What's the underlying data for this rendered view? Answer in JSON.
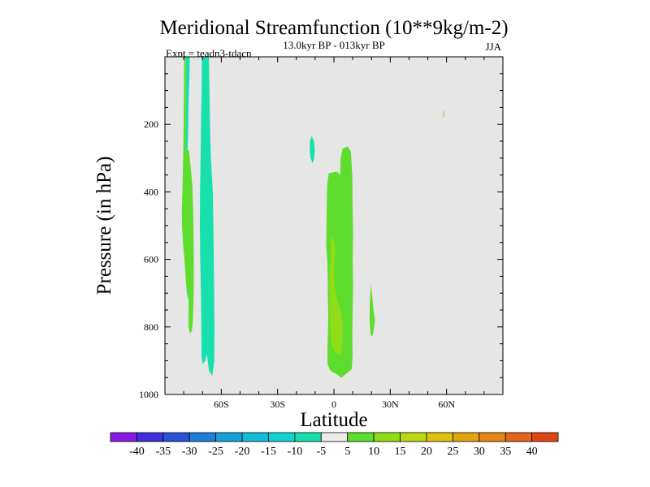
{
  "chart_data": {
    "type": "heatmap",
    "title": "Meridional Streamfunction (10**9kg/m-2)",
    "subtitle": "13.0kyr BP - 013kyr BP",
    "experiment": "Expt = teadn3-tdacn",
    "season": "JJA",
    "xlabel": "Latitude",
    "ylabel": "Pressure (in hPa)",
    "xlim": [
      -90,
      90
    ],
    "ylim": [
      0,
      1000
    ],
    "y_inverted": true,
    "x_ticks": [
      {
        "value": -60,
        "label": "60S"
      },
      {
        "value": -30,
        "label": "30S"
      },
      {
        "value": 0,
        "label": "0"
      },
      {
        "value": 30,
        "label": "30N"
      },
      {
        "value": 60,
        "label": "60N"
      }
    ],
    "y_ticks": [
      {
        "value": 200,
        "label": "200"
      },
      {
        "value": 400,
        "label": "400"
      },
      {
        "value": 600,
        "label": "600"
      },
      {
        "value": 800,
        "label": "800"
      },
      {
        "value": 1000,
        "label": "1000"
      }
    ],
    "background_color": "#e6e6e6",
    "colorbar": {
      "levels": [
        -45,
        -40,
        -35,
        -30,
        -25,
        -20,
        -15,
        -10,
        -5,
        5,
        10,
        15,
        20,
        25,
        30,
        35,
        40,
        45
      ],
      "labels": [
        "-40",
        "-35",
        "-30",
        "-25",
        "-20",
        "-15",
        "-10",
        "-5",
        "5",
        "10",
        "15",
        "20",
        "25",
        "30",
        "35",
        "40"
      ],
      "colors": [
        "#8a19e3",
        "#3f2fdc",
        "#2a52d8",
        "#1f7ed8",
        "#16a2d8",
        "#13bcd8",
        "#10d4d0",
        "#17e0ad",
        "#ebebeb",
        "#5edd2e",
        "#8fdd17",
        "#bcd711",
        "#ddc10c",
        "#e3a40f",
        "#e68614",
        "#e4641a",
        "#e04612"
      ]
    },
    "contours": [
      {
        "name": "cyan-60S-south",
        "value": -7.5,
        "color": "#17e0ad",
        "polygon": [
          [
            -78.9,
            0
          ],
          [
            -76.8,
            0
          ],
          [
            -76.9,
            50
          ],
          [
            -77.2,
            100
          ],
          [
            -77.5,
            150
          ],
          [
            -77.6,
            200
          ],
          [
            -77.8,
            250
          ],
          [
            -78.2,
            300
          ],
          [
            -78.6,
            350
          ],
          [
            -79.1,
            400
          ],
          [
            -79.4,
            450
          ],
          [
            -79.3,
            500
          ],
          [
            -78.9,
            550
          ],
          [
            -78.3,
            600
          ],
          [
            -77.8,
            650
          ],
          [
            -77.5,
            690
          ],
          [
            -77.8,
            720
          ],
          [
            -78.3,
            700
          ],
          [
            -78.7,
            650
          ],
          [
            -79.0,
            600
          ],
          [
            -79.2,
            550
          ],
          [
            -79.3,
            500
          ],
          [
            -79.2,
            450
          ],
          [
            -79.1,
            400
          ],
          [
            -79.0,
            300
          ],
          [
            -78.9,
            200
          ],
          [
            -78.9,
            100
          ]
        ]
      },
      {
        "name": "cyan-60S-main",
        "value": -7.5,
        "color": "#17e0ad",
        "polygon": [
          [
            -70.3,
            0
          ],
          [
            -66.6,
            0
          ],
          [
            -66.3,
            100
          ],
          [
            -66.0,
            200
          ],
          [
            -65.8,
            250
          ],
          [
            -65.5,
            300
          ],
          [
            -65.0,
            350
          ],
          [
            -64.5,
            400
          ],
          [
            -64.2,
            500
          ],
          [
            -64.0,
            600
          ],
          [
            -63.8,
            700
          ],
          [
            -63.6,
            800
          ],
          [
            -63.7,
            900
          ],
          [
            -64.8,
            945
          ],
          [
            -66.5,
            930
          ],
          [
            -67.7,
            880
          ],
          [
            -68.5,
            900
          ],
          [
            -69.9,
            910
          ],
          [
            -70.5,
            890
          ],
          [
            -70.6,
            800
          ],
          [
            -70.8,
            700
          ],
          [
            -71.2,
            600
          ],
          [
            -71.4,
            500
          ],
          [
            -71.3,
            400
          ],
          [
            -71.0,
            300
          ],
          [
            -70.8,
            200
          ],
          [
            -70.5,
            100
          ]
        ]
      },
      {
        "name": "cyan-15S-blob",
        "value": -7.5,
        "color": "#17e0ad",
        "polygon": [
          [
            -11.9,
            235
          ],
          [
            -10.6,
            250
          ],
          [
            -10.2,
            275
          ],
          [
            -10.5,
            300
          ],
          [
            -11.3,
            315
          ],
          [
            -12.5,
            300
          ],
          [
            -12.9,
            275
          ],
          [
            -12.8,
            250
          ]
        ]
      },
      {
        "name": "green-70S-column",
        "value": 7.5,
        "color": "#5edd2e",
        "polygon": [
          [
            -79.8,
            0
          ],
          [
            -78.8,
            0
          ],
          [
            -78.9,
            100
          ],
          [
            -78.9,
            200
          ],
          [
            -79.0,
            300
          ],
          [
            -78.5,
            270
          ],
          [
            -77.2,
            280
          ],
          [
            -76.4,
            320
          ],
          [
            -75.4,
            380
          ],
          [
            -75.0,
            450
          ],
          [
            -74.8,
            520
          ],
          [
            -74.6,
            600
          ],
          [
            -74.7,
            700
          ],
          [
            -75.1,
            780
          ],
          [
            -75.6,
            810
          ],
          [
            -76.6,
            820
          ],
          [
            -77.5,
            800
          ],
          [
            -77.4,
            720
          ],
          [
            -77.8,
            690
          ],
          [
            -78.3,
            700
          ],
          [
            -79.0,
            650
          ],
          [
            -79.6,
            600
          ],
          [
            -80.4,
            550
          ],
          [
            -80.9,
            500
          ],
          [
            -81.0,
            450
          ],
          [
            -80.7,
            400
          ],
          [
            -80.3,
            300
          ],
          [
            -80.0,
            200
          ],
          [
            -79.9,
            100
          ]
        ]
      },
      {
        "name": "green-equator-column",
        "value": 7.5,
        "color": "#5edd2e",
        "polygon": [
          [
            4.6,
            272
          ],
          [
            7.3,
            265
          ],
          [
            9.0,
            280
          ],
          [
            9.8,
            350
          ],
          [
            9.9,
            420
          ],
          [
            10.2,
            520
          ],
          [
            10.0,
            600
          ],
          [
            10.2,
            680
          ],
          [
            10.0,
            750
          ],
          [
            9.8,
            820
          ],
          [
            9.9,
            880
          ],
          [
            9.5,
            925
          ],
          [
            6.3,
            940
          ],
          [
            4.0,
            950
          ],
          [
            1.4,
            940
          ],
          [
            -1.9,
            930
          ],
          [
            -3.4,
            910
          ],
          [
            -3.4,
            860
          ],
          [
            -3.1,
            800
          ],
          [
            -3.0,
            760
          ],
          [
            -3.2,
            720
          ],
          [
            -3.3,
            650
          ],
          [
            -3.6,
            600
          ],
          [
            -4.1,
            560
          ],
          [
            -4.0,
            500
          ],
          [
            -3.8,
            430
          ],
          [
            -3.6,
            380
          ],
          [
            -2.8,
            345
          ],
          [
            1.5,
            340
          ],
          [
            3.3,
            350
          ],
          [
            3.6,
            300
          ]
        ]
      },
      {
        "name": "green-20N-blob",
        "value": 7.5,
        "color": "#5edd2e",
        "polygon": [
          [
            19.7,
            670
          ],
          [
            20.6,
            720
          ],
          [
            21.3,
            760
          ],
          [
            21.9,
            780
          ],
          [
            21.4,
            800
          ],
          [
            20.8,
            820
          ],
          [
            19.9,
            830
          ],
          [
            19.3,
            810
          ],
          [
            19.0,
            780
          ],
          [
            19.1,
            730
          ]
        ]
      },
      {
        "name": "green-60N-speck",
        "value": 7.5,
        "color": "#5edd2e",
        "polygon": [
          [
            58.2,
            160
          ],
          [
            58.6,
            160
          ],
          [
            58.6,
            180
          ],
          [
            58.2,
            180
          ]
        ]
      },
      {
        "name": "lime-equator-core",
        "value": 12.5,
        "color": "#8fdd17",
        "polygon": [
          [
            -2.0,
            530
          ],
          [
            -0.5,
            540
          ],
          [
            0.4,
            550
          ],
          [
            0.7,
            580
          ],
          [
            0.0,
            640
          ],
          [
            0.5,
            690
          ],
          [
            1.7,
            720
          ],
          [
            3.0,
            740
          ],
          [
            4.2,
            770
          ],
          [
            4.8,
            800
          ],
          [
            4.6,
            850
          ],
          [
            3.6,
            880
          ],
          [
            1.8,
            880
          ],
          [
            0.3,
            870
          ],
          [
            -1.0,
            860
          ],
          [
            -1.8,
            820
          ],
          [
            -2.2,
            780
          ],
          [
            -2.4,
            740
          ],
          [
            -2.2,
            700
          ],
          [
            -2.4,
            660
          ],
          [
            -2.1,
            620
          ],
          [
            -1.6,
            600
          ],
          [
            -1.6,
            570
          ]
        ]
      }
    ]
  }
}
